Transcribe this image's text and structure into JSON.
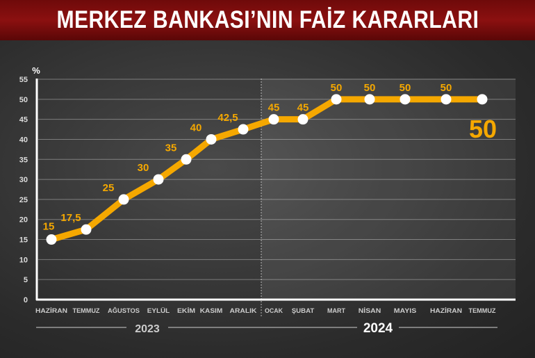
{
  "title": "MERKEZ BANKASI’NIN FAİZ KARARLARI",
  "chart_data": {
    "type": "line",
    "title": "MERKEZ BANKASI’NIN FAİZ KARARLARI",
    "ylabel": "%",
    "ylim": [
      0,
      55
    ],
    "yticks": [
      0,
      5,
      10,
      15,
      20,
      25,
      30,
      35,
      40,
      45,
      50,
      55
    ],
    "grid": true,
    "categories": [
      "HAZİRAN",
      "TEMMUZ",
      "AĞUSTOS",
      "EYLÜL",
      "EKİM",
      "KASIM",
      "ARALIK",
      "OCAK",
      "ŞUBAT",
      "MART",
      "NİSAN",
      "MAYIS",
      "HAZİRAN",
      "TEMMUZ"
    ],
    "values": [
      15,
      17.5,
      25,
      30,
      35,
      40,
      42.5,
      45,
      45,
      50,
      50,
      50,
      50,
      50
    ],
    "data_labels": [
      "15",
      "17,5",
      "25",
      "30",
      "35",
      "40",
      "42,5",
      "45",
      "45",
      "50",
      "50",
      "50",
      "50",
      "50"
    ],
    "year_groups": [
      {
        "label": "2023",
        "months": 7
      },
      {
        "label": "2024",
        "months": 7
      }
    ],
    "highlight_label": "50",
    "colors": {
      "line": "#f5a800",
      "label": "#f5a800",
      "marker": "#ffffff",
      "title_bar": "#8b1010"
    }
  }
}
